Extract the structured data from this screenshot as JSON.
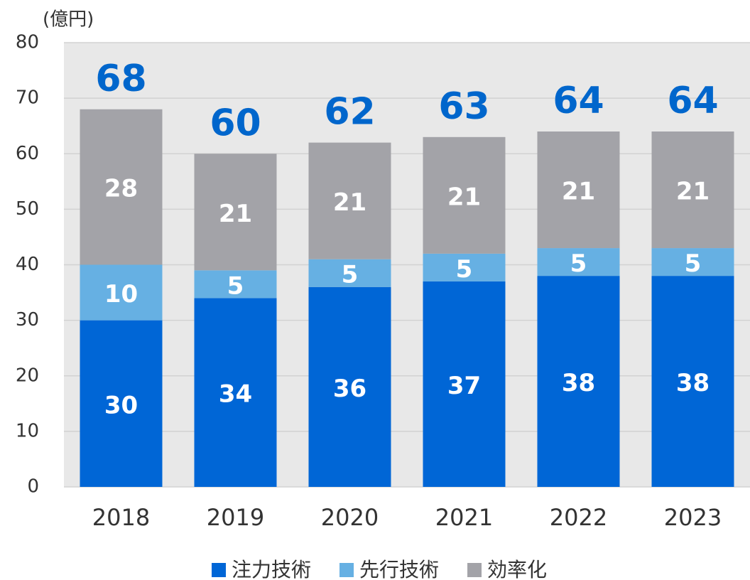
{
  "chart_data": {
    "type": "stacked_bar",
    "y_unit": "(億円)",
    "categories": [
      "2018",
      "2019",
      "2020",
      "2021",
      "2022",
      "2023"
    ],
    "series": [
      {
        "name": "注力技術",
        "color": "#0066d6",
        "values": [
          30,
          34,
          36,
          37,
          38,
          38
        ]
      },
      {
        "name": "先行技術",
        "color": "#66b0e3",
        "values": [
          10,
          5,
          5,
          5,
          5,
          5
        ]
      },
      {
        "name": "効率化",
        "color": "#a3a3a8",
        "values": [
          28,
          21,
          21,
          21,
          21,
          21
        ]
      }
    ],
    "total_labels": [
      68,
      60,
      62,
      63,
      64,
      64
    ],
    "ylim": [
      0,
      80
    ],
    "yticks": [
      0,
      10,
      20,
      30,
      40,
      50,
      60,
      70,
      80
    ],
    "grid": true
  }
}
